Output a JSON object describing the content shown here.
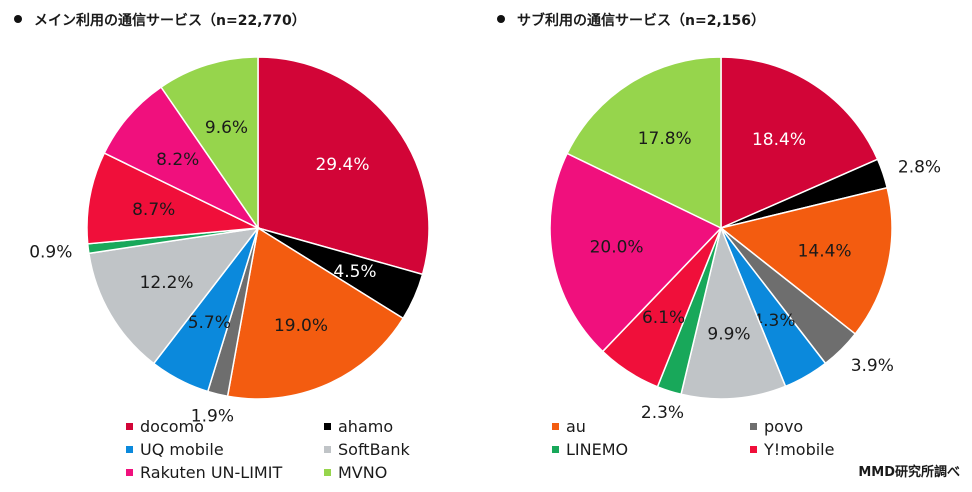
{
  "source_note": "MMD研究所調べ",
  "chart_data": [
    {
      "type": "pie",
      "title": "メイン利用の通信サービス（n=22,770）",
      "categories": [
        "docomo",
        "ahamo",
        "au",
        "povo",
        "UQ mobile",
        "SoftBank",
        "LINEMO",
        "Y!mobile",
        "Rakuten UN-LIMIT",
        "MVNO"
      ],
      "values": [
        29.4,
        4.5,
        19.0,
        1.9,
        5.7,
        12.2,
        0.9,
        8.7,
        8.2,
        9.6
      ],
      "labels": [
        "29.4%",
        "4.5%",
        "19.0%",
        "1.9%",
        "5.7%",
        "12.2%",
        "0.9%",
        "8.7%",
        "8.2%",
        "9.6%"
      ],
      "label_placement": [
        "inside",
        "inside",
        "inside",
        "outside",
        "inside",
        "inside",
        "outside",
        "inside",
        "inside",
        "inside"
      ],
      "colors": [
        "#d20537",
        "#000000",
        "#f35c10",
        "#6e6e6e",
        "#0b89dc",
        "#c0c4c7",
        "#18a85a",
        "#f00f3a",
        "#f0107d",
        "#96d54c"
      ],
      "legend": [
        {
          "name": "docomo",
          "color": "#d20537"
        },
        {
          "name": "ahamo",
          "color": "#000000"
        },
        {
          "name": "UQ mobile",
          "color": "#0b89dc"
        },
        {
          "name": "SoftBank",
          "color": "#c0c4c7"
        },
        {
          "name": "Rakuten UN-LIMIT",
          "color": "#f0107d"
        },
        {
          "name": "MVNO",
          "color": "#96d54c"
        }
      ]
    },
    {
      "type": "pie",
      "title": "サブ利用の通信サービス（n=2,156）",
      "categories": [
        "docomo",
        "ahamo",
        "au",
        "povo",
        "UQ mobile",
        "SoftBank",
        "LINEMO",
        "Y!mobile",
        "Rakuten UN-LIMIT",
        "MVNO"
      ],
      "values": [
        18.4,
        2.8,
        14.4,
        3.9,
        4.3,
        9.9,
        2.3,
        6.1,
        20.0,
        17.8
      ],
      "labels": [
        "18.4%",
        "2.8%",
        "14.4%",
        "3.9%",
        "4.3%",
        "9.9%",
        "2.3%",
        "6.1%",
        "20.0%",
        "17.8%"
      ],
      "label_placement": [
        "inside",
        "outside",
        "inside",
        "outside",
        "inside",
        "inside",
        "outside",
        "inside",
        "inside",
        "inside"
      ],
      "colors": [
        "#d20537",
        "#000000",
        "#f35c10",
        "#6e6e6e",
        "#0b89dc",
        "#c0c4c7",
        "#18a85a",
        "#f00f3a",
        "#f0107d",
        "#96d54c"
      ],
      "legend": [
        {
          "name": "au",
          "color": "#f35c10"
        },
        {
          "name": "povo",
          "color": "#6e6e6e"
        },
        {
          "name": "LINEMO",
          "color": "#18a85a"
        },
        {
          "name": "Y!mobile",
          "color": "#f00f3a"
        }
      ]
    }
  ]
}
